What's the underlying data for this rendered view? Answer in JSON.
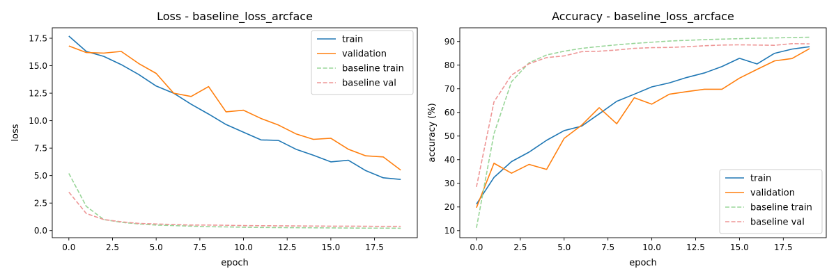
{
  "chart_data": [
    {
      "type": "line",
      "title": "Loss - baseline_loss_arcface",
      "xlabel": "epoch",
      "ylabel": "loss",
      "xlim": [
        -0.95,
        19.95
      ],
      "ylim": [
        -0.65,
        18.45
      ],
      "xticks": [
        0.0,
        2.5,
        5.0,
        7.5,
        10.0,
        12.5,
        15.0,
        17.5
      ],
      "xtick_labels": [
        "0.0",
        "2.5",
        "5.0",
        "7.5",
        "10.0",
        "12.5",
        "15.0",
        "17.5"
      ],
      "yticks": [
        0.0,
        2.5,
        5.0,
        7.5,
        10.0,
        12.5,
        15.0,
        17.5
      ],
      "ytick_labels": [
        "0.0",
        "2.5",
        "5.0",
        "7.5",
        "10.0",
        "12.5",
        "15.0",
        "17.5"
      ],
      "grid": false,
      "legend_position": "top-right",
      "x": [
        0,
        1,
        2,
        3,
        4,
        5,
        6,
        7,
        8,
        9,
        10,
        11,
        12,
        13,
        14,
        15,
        16,
        17,
        18,
        19
      ],
      "series": [
        {
          "name": "train",
          "color": "#1f77b4",
          "dash": false,
          "values": [
            17.7,
            16.3,
            15.85,
            15.1,
            14.2,
            13.15,
            12.5,
            11.5,
            10.6,
            9.65,
            8.95,
            8.25,
            8.2,
            7.4,
            6.85,
            6.25,
            6.4,
            5.45,
            4.8,
            4.65
          ]
        },
        {
          "name": "validation",
          "color": "#ff7f0e",
          "dash": false,
          "values": [
            16.8,
            16.2,
            16.15,
            16.3,
            15.2,
            14.3,
            12.5,
            12.2,
            13.1,
            10.8,
            10.95,
            10.2,
            9.6,
            8.8,
            8.3,
            8.4,
            7.4,
            6.8,
            6.7,
            5.5
          ]
        },
        {
          "name": "baseline train",
          "color": "#98d598",
          "dash": true,
          "values": [
            5.2,
            2.2,
            1.0,
            0.75,
            0.6,
            0.5,
            0.45,
            0.4,
            0.35,
            0.33,
            0.3,
            0.28,
            0.27,
            0.26,
            0.25,
            0.24,
            0.23,
            0.22,
            0.22,
            0.21
          ]
        },
        {
          "name": "baseline val",
          "color": "#ee9696",
          "dash": true,
          "values": [
            3.5,
            1.55,
            1.0,
            0.8,
            0.65,
            0.6,
            0.55,
            0.5,
            0.5,
            0.48,
            0.45,
            0.44,
            0.43,
            0.42,
            0.41,
            0.4,
            0.4,
            0.39,
            0.38,
            0.38
          ]
        }
      ]
    },
    {
      "type": "line",
      "title": "Accuracy - baseline_loss_arcface",
      "xlabel": "epoch",
      "ylabel": "accuracy (%)",
      "xlim": [
        -0.95,
        19.95
      ],
      "ylim": [
        7.0,
        95.8
      ],
      "xticks": [
        0.0,
        2.5,
        5.0,
        7.5,
        10.0,
        12.5,
        15.0,
        17.5
      ],
      "xtick_labels": [
        "0.0",
        "2.5",
        "5.0",
        "7.5",
        "10.0",
        "12.5",
        "15.0",
        "17.5"
      ],
      "yticks": [
        10,
        20,
        30,
        40,
        50,
        60,
        70,
        80,
        90
      ],
      "ytick_labels": [
        "10",
        "20",
        "30",
        "40",
        "50",
        "60",
        "70",
        "80",
        "90"
      ],
      "grid": false,
      "legend_position": "bottom-right",
      "x": [
        0,
        1,
        2,
        3,
        4,
        5,
        6,
        7,
        8,
        9,
        10,
        11,
        12,
        13,
        14,
        15,
        16,
        17,
        18,
        19
      ],
      "series": [
        {
          "name": "train",
          "color": "#1f77b4",
          "dash": false,
          "values": [
            21.2,
            32.5,
            39.2,
            43.2,
            48.2,
            52.3,
            54.2,
            59.4,
            64.7,
            67.7,
            70.8,
            72.5,
            74.8,
            76.7,
            79.4,
            82.9,
            80.5,
            85.0,
            86.8,
            87.8
          ]
        },
        {
          "name": "validation",
          "color": "#ff7f0e",
          "dash": false,
          "values": [
            19.7,
            38.5,
            34.3,
            38.0,
            35.9,
            49.0,
            54.6,
            62.0,
            55.2,
            66.2,
            63.5,
            67.7,
            68.8,
            69.8,
            69.8,
            74.5,
            78.2,
            81.8,
            82.8,
            87.0
          ]
        },
        {
          "name": "baseline train",
          "color": "#98d598",
          "dash": true,
          "values": [
            11.2,
            51.0,
            73.0,
            81.0,
            84.3,
            85.9,
            87.1,
            87.9,
            88.6,
            89.2,
            89.7,
            90.2,
            90.5,
            90.8,
            91.0,
            91.2,
            91.4,
            91.5,
            91.7,
            91.8
          ]
        },
        {
          "name": "baseline val",
          "color": "#ee9696",
          "dash": true,
          "values": [
            28.5,
            64.5,
            75.8,
            80.6,
            83.2,
            83.9,
            85.7,
            85.9,
            86.4,
            87.1,
            87.4,
            87.5,
            87.8,
            88.2,
            88.5,
            88.6,
            88.5,
            88.4,
            89.1,
            89.0
          ]
        }
      ]
    }
  ]
}
